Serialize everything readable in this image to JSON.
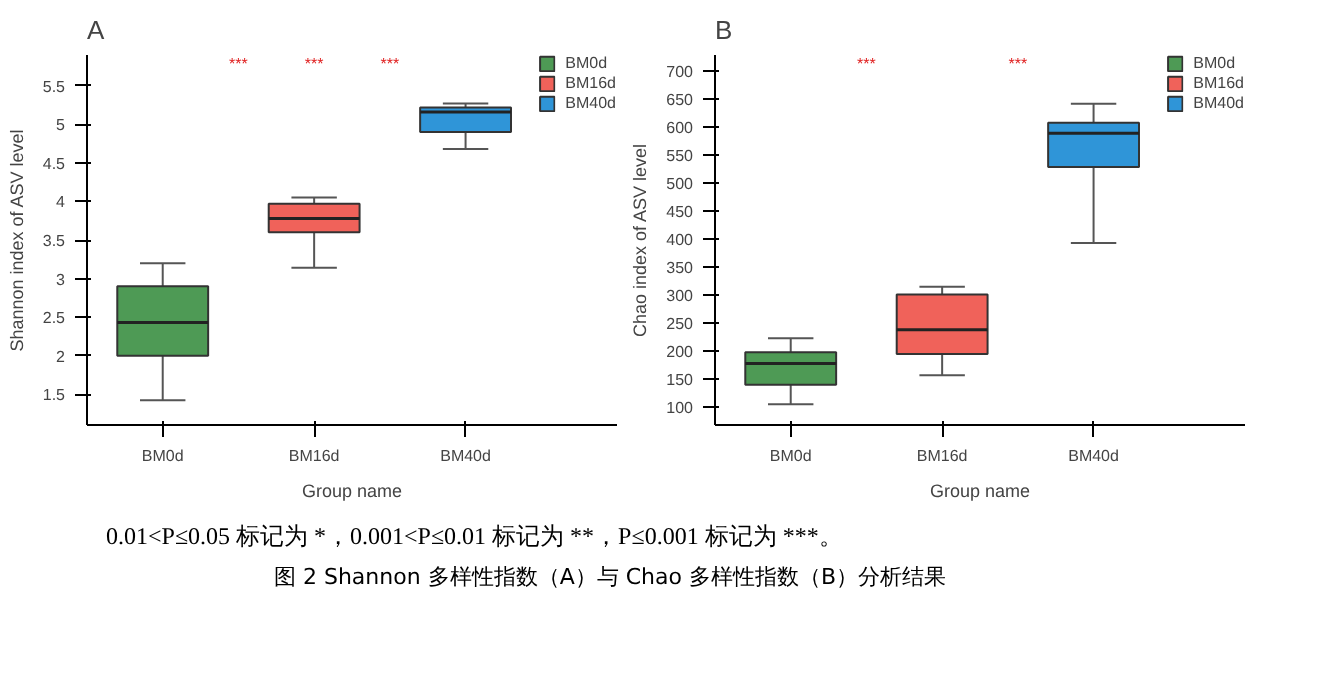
{
  "chart_data": [
    {
      "type": "box",
      "title": "A",
      "xlabel": "Group name",
      "ylabel": "Shannon index of ASV level",
      "categories": [
        "BM0d",
        "BM16d",
        "BM40d"
      ],
      "series": [
        {
          "name": "BM0d",
          "color": "#4e9a55",
          "boxes": [
            {
              "low": 1.42,
              "q1": 2.0,
              "median": 2.43,
              "q3": 2.9,
              "high": 3.2
            },
            null,
            null
          ]
        },
        {
          "name": "BM16d",
          "color": "#f0625a",
          "boxes": [
            null,
            {
              "low": 3.14,
              "q1": 3.6,
              "median": 3.78,
              "q3": 3.97,
              "high": 4.05
            },
            null
          ]
        },
        {
          "name": "BM40d",
          "color": "#2f95d8",
          "boxes": [
            null,
            null,
            {
              "low": 4.68,
              "q1": 4.9,
              "median": 5.16,
              "q3": 5.22,
              "high": 5.27
            }
          ]
        }
      ],
      "ylim": [
        1.1,
        5.9
      ],
      "yticks": [
        1.5,
        2,
        2.5,
        3,
        3.5,
        4,
        4.5,
        5,
        5.5
      ],
      "legend": "top right",
      "grid": false,
      "annotations": [
        "***",
        "***",
        "***"
      ]
    },
    {
      "type": "box",
      "title": "B",
      "xlabel": "Group name",
      "ylabel": "Chao index of ASV level",
      "categories": [
        "BM0d",
        "BM16d",
        "BM40d"
      ],
      "series": [
        {
          "name": "BM0d",
          "color": "#4e9a55",
          "boxes": [
            {
              "low": 104,
              "q1": 139,
              "median": 177,
              "q3": 197,
              "high": 222
            },
            null,
            null
          ]
        },
        {
          "name": "BM16d",
          "color": "#f0625a",
          "boxes": [
            null,
            {
              "low": 156,
              "q1": 194,
              "median": 237,
              "q3": 300,
              "high": 314
            },
            null
          ]
        },
        {
          "name": "BM40d",
          "color": "#2f95d8",
          "boxes": [
            null,
            null,
            {
              "low": 392,
              "q1": 528,
              "median": 588,
              "q3": 607,
              "high": 641
            }
          ]
        }
      ],
      "ylim": [
        67,
        728
      ],
      "yticks": [
        100,
        150,
        200,
        250,
        300,
        350,
        400,
        450,
        500,
        550,
        600,
        650,
        700
      ],
      "legend": "top right",
      "grid": false,
      "annotations": [
        "***",
        "***"
      ]
    },
    {
      "type": "other",
      "title": "图 2 Shannon 多样性指数（A）与 Chao 多样性指数（B）分析结果",
      "annotations": [
        "0.01<P≤0.05 标记为 *，0.001<P≤0.01 标记为 **，P≤0.001 标记为 ***。"
      ]
    }
  ]
}
